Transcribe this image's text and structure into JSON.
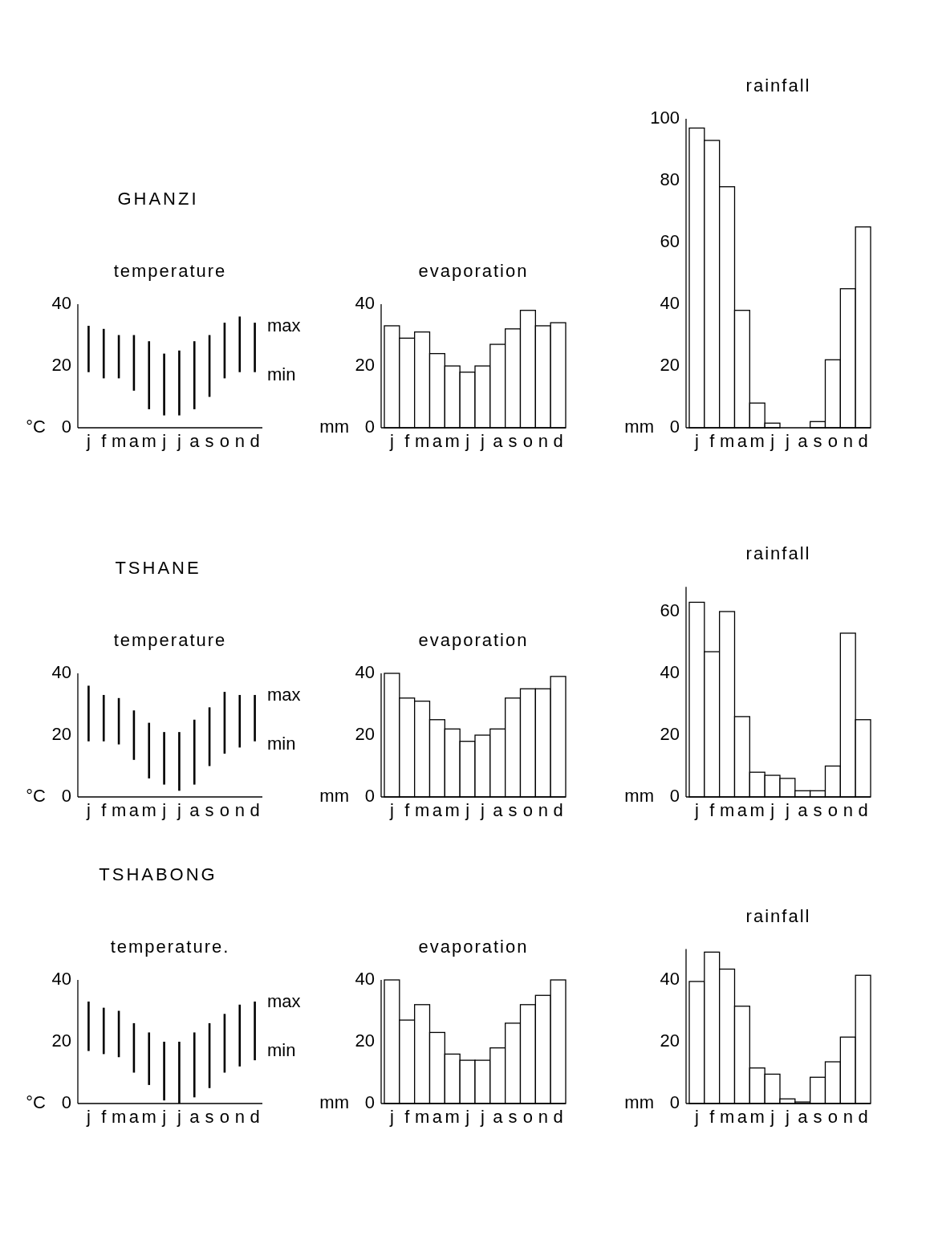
{
  "chart_data": [
    {
      "type": "bar",
      "subtitle": "GHANZI",
      "title": "temperature",
      "ylabel": "°C",
      "categories": [
        "j",
        "f",
        "m",
        "a",
        "m",
        "j",
        "j",
        "a",
        "s",
        "o",
        "n",
        "d"
      ],
      "base": [
        18,
        16,
        16,
        12,
        6,
        4,
        4,
        6,
        10,
        16,
        18,
        18
      ],
      "values": [
        15,
        16,
        14,
        18,
        22,
        20,
        21,
        22,
        20,
        18,
        18,
        16
      ],
      "color": "#000000",
      "ylim": [
        0,
        40
      ],
      "yticks": [
        0,
        20,
        40
      ],
      "annotations": [
        "max",
        "min"
      ]
    },
    {
      "type": "bar",
      "title": "evaporation",
      "ylabel": "mm",
      "categories": [
        "j",
        "f",
        "m",
        "a",
        "m",
        "j",
        "j",
        "a",
        "s",
        "o",
        "n",
        "d"
      ],
      "values": [
        33,
        29,
        31,
        24,
        20,
        18,
        20,
        27,
        32,
        38,
        33,
        34
      ],
      "color": "#ffffff",
      "ylim": [
        0,
        40
      ],
      "yticks": [
        0,
        20,
        40
      ]
    },
    {
      "type": "bar",
      "title": "rainfall",
      "ylabel": "mm",
      "categories": [
        "j",
        "f",
        "m",
        "a",
        "m",
        "j",
        "j",
        "a",
        "s",
        "o",
        "n",
        "d"
      ],
      "values": [
        97,
        93,
        78,
        38,
        8,
        1.5,
        0,
        0,
        2,
        22,
        45,
        65
      ],
      "color": "#ffffff",
      "ylim": [
        0,
        100
      ],
      "yticks": [
        0,
        20,
        40,
        60,
        80,
        100
      ]
    },
    {
      "type": "bar",
      "subtitle": "TSHANE",
      "title": "temperature",
      "ylabel": "°C",
      "categories": [
        "j",
        "f",
        "m",
        "a",
        "m",
        "j",
        "j",
        "a",
        "s",
        "o",
        "n",
        "d"
      ],
      "base": [
        18,
        18,
        17,
        12,
        6,
        4,
        2,
        4,
        10,
        14,
        16,
        18
      ],
      "values": [
        18,
        15,
        15,
        16,
        18,
        17,
        19,
        21,
        19,
        20,
        17,
        15
      ],
      "color": "#000000",
      "ylim": [
        0,
        40
      ],
      "yticks": [
        0,
        20,
        40
      ],
      "annotations": [
        "max",
        "min"
      ]
    },
    {
      "type": "bar",
      "title": "evaporation",
      "ylabel": "mm",
      "categories": [
        "j",
        "f",
        "m",
        "a",
        "m",
        "j",
        "j",
        "a",
        "s",
        "o",
        "n",
        "d"
      ],
      "values": [
        40,
        32,
        31,
        25,
        22,
        18,
        20,
        22,
        32,
        35,
        35,
        39
      ],
      "color": "#ffffff",
      "ylim": [
        0,
        40
      ],
      "yticks": [
        0,
        20,
        40
      ]
    },
    {
      "type": "bar",
      "title": "rainfall",
      "ylabel": "mm",
      "categories": [
        "j",
        "f",
        "m",
        "a",
        "m",
        "j",
        "j",
        "a",
        "s",
        "o",
        "n",
        "d"
      ],
      "values": [
        63,
        47,
        60,
        26,
        8,
        7,
        6,
        2,
        2,
        10,
        53,
        25
      ],
      "color": "#ffffff",
      "ylim": [
        0,
        68
      ],
      "yticks": [
        0,
        20,
        40,
        60
      ]
    },
    {
      "type": "bar",
      "subtitle": "TSHABONG",
      "title": "temperature.",
      "ylabel": "°C",
      "categories": [
        "j",
        "f",
        "m",
        "a",
        "m",
        "j",
        "j",
        "a",
        "s",
        "o",
        "n",
        "d"
      ],
      "base": [
        17,
        16,
        15,
        10,
        6,
        1,
        0,
        2,
        5,
        10,
        12,
        14
      ],
      "values": [
        16,
        15,
        15,
        16,
        17,
        19,
        20,
        21,
        21,
        19,
        20,
        19
      ],
      "color": "#000000",
      "ylim": [
        0,
        40
      ],
      "yticks": [
        0,
        20,
        40
      ],
      "annotations": [
        "max",
        "min"
      ]
    },
    {
      "type": "bar",
      "title": "evaporation",
      "ylabel": "mm",
      "categories": [
        "j",
        "f",
        "m",
        "a",
        "m",
        "j",
        "j",
        "a",
        "s",
        "o",
        "n",
        "d"
      ],
      "values": [
        40,
        27,
        32,
        23,
        16,
        14,
        14,
        18,
        26,
        32,
        35,
        40
      ],
      "color": "#ffffff",
      "ylim": [
        0,
        40
      ],
      "yticks": [
        0,
        20,
        40
      ]
    },
    {
      "type": "bar",
      "title": "rainfall",
      "ylabel": "mm",
      "categories": [
        "j",
        "f",
        "m",
        "a",
        "m",
        "j",
        "j",
        "a",
        "s",
        "o",
        "n",
        "d"
      ],
      "values": [
        39.5,
        49,
        43.5,
        31.5,
        11.5,
        9.5,
        1.5,
        0.5,
        8.5,
        13.5,
        21.5,
        41.5
      ],
      "color": "#ffffff",
      "ylim": [
        0,
        50
      ],
      "yticks": [
        0,
        20,
        40
      ]
    }
  ]
}
